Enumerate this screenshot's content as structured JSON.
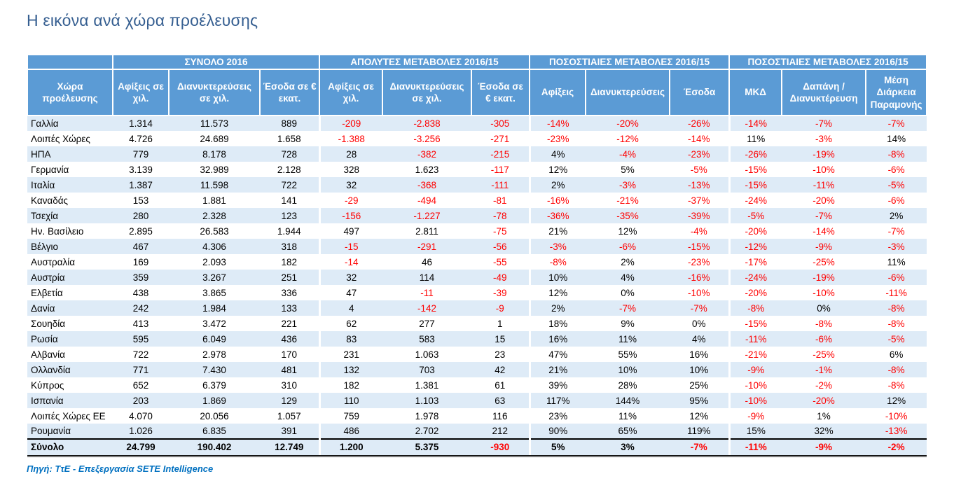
{
  "page": {
    "title": "Η εικόνα ανά χώρα προέλευσης",
    "source_note": "Πηγή: ΤτΕ - Επεξεργασία SETE Intelligence"
  },
  "colors": {
    "header_bg": "#5B9BD5",
    "stripe_bg": "#DEEBF7",
    "negative": "#FF0000",
    "title": "#365F91",
    "source": "#0070C0"
  },
  "table": {
    "group_headers": [
      {
        "label": "",
        "span": 1
      },
      {
        "label": "ΣΥΝΟΛΟ 2016",
        "span": 3
      },
      {
        "label": "ΑΠΟΛΥΤΕΣ ΜΕΤΑΒΟΛΕΣ 2016/15",
        "span": 3
      },
      {
        "label": "ΠΟΣΟΣΤΙΑΙΕΣ ΜΕΤΑΒΟΛΕΣ 2016/15",
        "span": 3
      },
      {
        "label": "ΠΟΣΟΣΤΙΑΙΕΣ ΜΕΤΑΒΟΛΕΣ 2016/15",
        "span": 3
      }
    ],
    "column_headers": [
      "Χώρα προέλευσης",
      "Αφίξεις σε χιλ.",
      "Διανυκτερεύσεις σε χιλ.",
      "Έσοδα σε € εκατ.",
      "Αφίξεις  σε χιλ.",
      "Διανυκτερεύσεις σε χιλ.",
      "Έσοδα σε € εκατ.",
      "Αφίξεις",
      "Διανυκτερεύσεις",
      "Έσοδα",
      "ΜΚΔ",
      "Δαπάνη / Διανυκτέρευση",
      "Μέση Διάρκεια Παραμονής"
    ],
    "rows": [
      [
        "Γαλλία",
        "1.314",
        "11.573",
        "889",
        "-209",
        "-2.838",
        "-305",
        "-14%",
        "-20%",
        "-26%",
        "-14%",
        "-7%",
        "-7%"
      ],
      [
        "Λοιπές Χώρες",
        "4.726",
        "24.689",
        "1.658",
        "-1.388",
        "-3.256",
        "-271",
        "-23%",
        "-12%",
        "-14%",
        "11%",
        "-3%",
        "14%"
      ],
      [
        "ΗΠΑ",
        "779",
        "8.178",
        "728",
        "28",
        "-382",
        "-215",
        "4%",
        "-4%",
        "-23%",
        "-26%",
        "-19%",
        "-8%"
      ],
      [
        "Γερμανία",
        "3.139",
        "32.989",
        "2.128",
        "328",
        "1.623",
        "-117",
        "12%",
        "5%",
        "-5%",
        "-15%",
        "-10%",
        "-6%"
      ],
      [
        "Ιταλία",
        "1.387",
        "11.598",
        "722",
        "32",
        "-368",
        "-111",
        "2%",
        "-3%",
        "-13%",
        "-15%",
        "-11%",
        "-5%"
      ],
      [
        "Καναδάς",
        "153",
        "1.881",
        "141",
        "-29",
        "-494",
        "-81",
        "-16%",
        "-21%",
        "-37%",
        "-24%",
        "-20%",
        "-6%"
      ],
      [
        "Τσεχία",
        "280",
        "2.328",
        "123",
        "-156",
        "-1.227",
        "-78",
        "-36%",
        "-35%",
        "-39%",
        "-5%",
        "-7%",
        "2%"
      ],
      [
        "Ην. Βασίλειο",
        "2.895",
        "26.583",
        "1.944",
        "497",
        "2.811",
        "-75",
        "21%",
        "12%",
        "-4%",
        "-20%",
        "-14%",
        "-7%"
      ],
      [
        "Βέλγιο",
        "467",
        "4.306",
        "318",
        "-15",
        "-291",
        "-56",
        "-3%",
        "-6%",
        "-15%",
        "-12%",
        "-9%",
        "-3%"
      ],
      [
        "Αυστραλία",
        "169",
        "2.093",
        "182",
        "-14",
        "46",
        "-55",
        "-8%",
        "2%",
        "-23%",
        "-17%",
        "-25%",
        "11%"
      ],
      [
        "Αυστρία",
        "359",
        "3.267",
        "251",
        "32",
        "114",
        "-49",
        "10%",
        "4%",
        "-16%",
        "-24%",
        "-19%",
        "-6%"
      ],
      [
        "Ελβετία",
        "438",
        "3.865",
        "336",
        "47",
        "-11",
        "-39",
        "12%",
        "0%",
        "-10%",
        "-20%",
        "-10%",
        "-11%"
      ],
      [
        "Δανία",
        "242",
        "1.984",
        "133",
        "4",
        "-142",
        "-9",
        "2%",
        "-7%",
        "-7%",
        "-8%",
        "0%",
        "-8%"
      ],
      [
        "Σουηδία",
        "413",
        "3.472",
        "221",
        "62",
        "277",
        "1",
        "18%",
        "9%",
        "0%",
        "-15%",
        "-8%",
        "-8%"
      ],
      [
        "Ρωσία",
        "595",
        "6.049",
        "436",
        "83",
        "583",
        "15",
        "16%",
        "11%",
        "4%",
        "-11%",
        "-6%",
        "-5%"
      ],
      [
        "Αλβανία",
        "722",
        "2.978",
        "170",
        "231",
        "1.063",
        "23",
        "47%",
        "55%",
        "16%",
        "-21%",
        "-25%",
        "6%"
      ],
      [
        "Ολλανδία",
        "771",
        "7.430",
        "481",
        "132",
        "703",
        "42",
        "21%",
        "10%",
        "10%",
        "-9%",
        "-1%",
        "-8%"
      ],
      [
        "Κύπρος",
        "652",
        "6.379",
        "310",
        "182",
        "1.381",
        "61",
        "39%",
        "28%",
        "25%",
        "-10%",
        "-2%",
        "-8%"
      ],
      [
        "Ισπανία",
        "203",
        "1.869",
        "129",
        "110",
        "1.103",
        "63",
        "117%",
        "144%",
        "95%",
        "-10%",
        "-20%",
        "12%"
      ],
      [
        "Λοιπές Χώρες ΕΕ",
        "4.070",
        "20.056",
        "1.057",
        "759",
        "1.978",
        "116",
        "23%",
        "11%",
        "12%",
        "-9%",
        "1%",
        "-10%"
      ],
      [
        "Ρουμανία",
        "1.026",
        "6.835",
        "391",
        "486",
        "2.702",
        "212",
        "90%",
        "65%",
        "119%",
        "15%",
        "32%",
        "-13%"
      ]
    ],
    "total_row": [
      "Σύνολο",
      "24.799",
      "190.402",
      "12.749",
      "1.200",
      "5.375",
      "-930",
      "5%",
      "3%",
      "-7%",
      "-11%",
      "-9%",
      "-2%"
    ]
  }
}
